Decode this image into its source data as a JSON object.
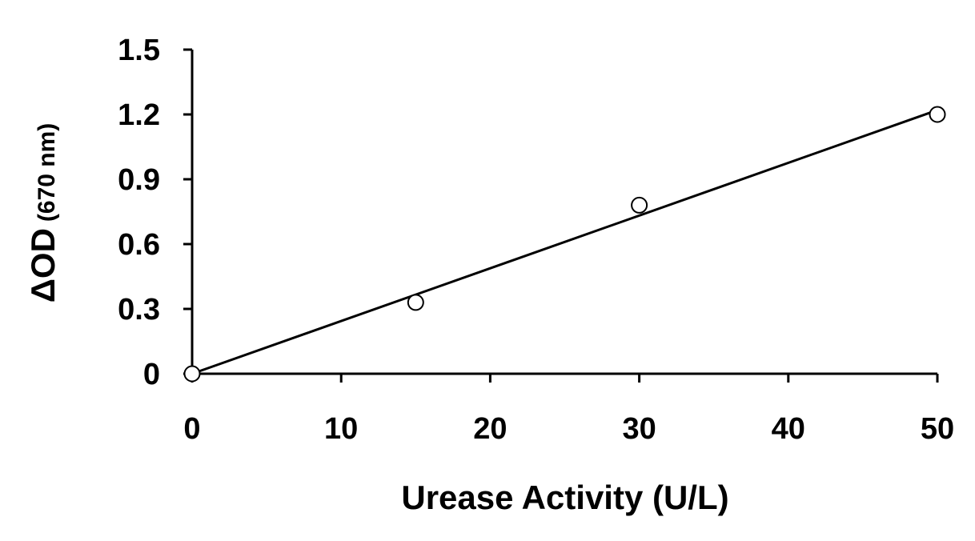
{
  "chart_data": {
    "type": "scatter",
    "title": "",
    "xlabel": "Urease Activity (U/L)",
    "ylabel": {
      "main": "ΔOD",
      "unit": "(670 nm)"
    },
    "xlim": [
      0,
      50
    ],
    "ylim": [
      0,
      1.5
    ],
    "xticks": [
      "0",
      "10",
      "20",
      "30",
      "40",
      "50"
    ],
    "yticks": [
      "0",
      "0.3",
      "0.6",
      "0.9",
      "1.2",
      "1.5"
    ],
    "grid": false,
    "legend": "none",
    "series": [
      {
        "x": [
          0,
          15,
          30,
          50
        ],
        "y": [
          0,
          0.33,
          0.78,
          1.2
        ],
        "marker": "open-circle"
      }
    ],
    "trendline": {
      "type": "linear",
      "x": [
        0,
        50
      ],
      "y": [
        0,
        1.22
      ]
    },
    "colors": {
      "axis": "#000000",
      "marker_fill": "#ffffff",
      "line": "#000000"
    }
  }
}
